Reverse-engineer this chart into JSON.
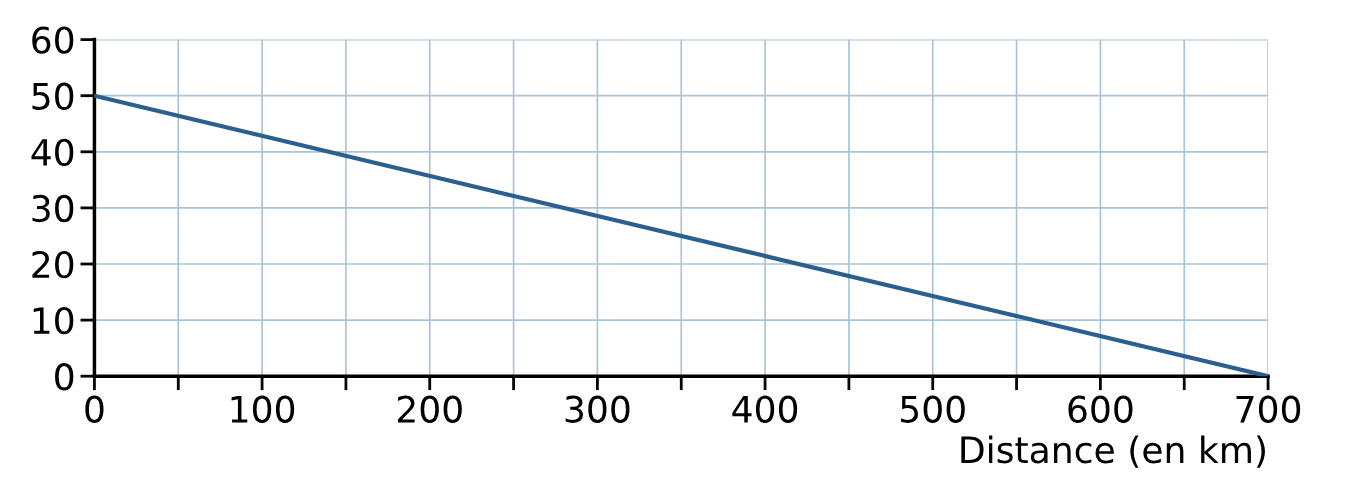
{
  "chart_data": {
    "type": "line",
    "xlabel": "Distance (en km)",
    "x": [
      0,
      700
    ],
    "series": [
      {
        "color": "#2a5f8f",
        "values": [
          50,
          0
        ]
      }
    ],
    "xlim": [
      0,
      700
    ],
    "ylim": [
      0,
      60
    ],
    "xticks": [
      0,
      {
        "value": 50,
        "label": null
      },
      100,
      {
        "value": 150,
        "label": null
      },
      200,
      {
        "value": 250,
        "label": null
      },
      300,
      {
        "value": 350,
        "label": null
      },
      400,
      {
        "value": 450,
        "label": null
      },
      500,
      {
        "value": 550,
        "label": null
      },
      600,
      {
        "value": 650,
        "label": null
      },
      700
    ],
    "yticks": [
      0,
      10,
      20,
      30,
      40,
      50,
      60
    ],
    "grid": true,
    "marker": "none",
    "line_style": "solid"
  }
}
